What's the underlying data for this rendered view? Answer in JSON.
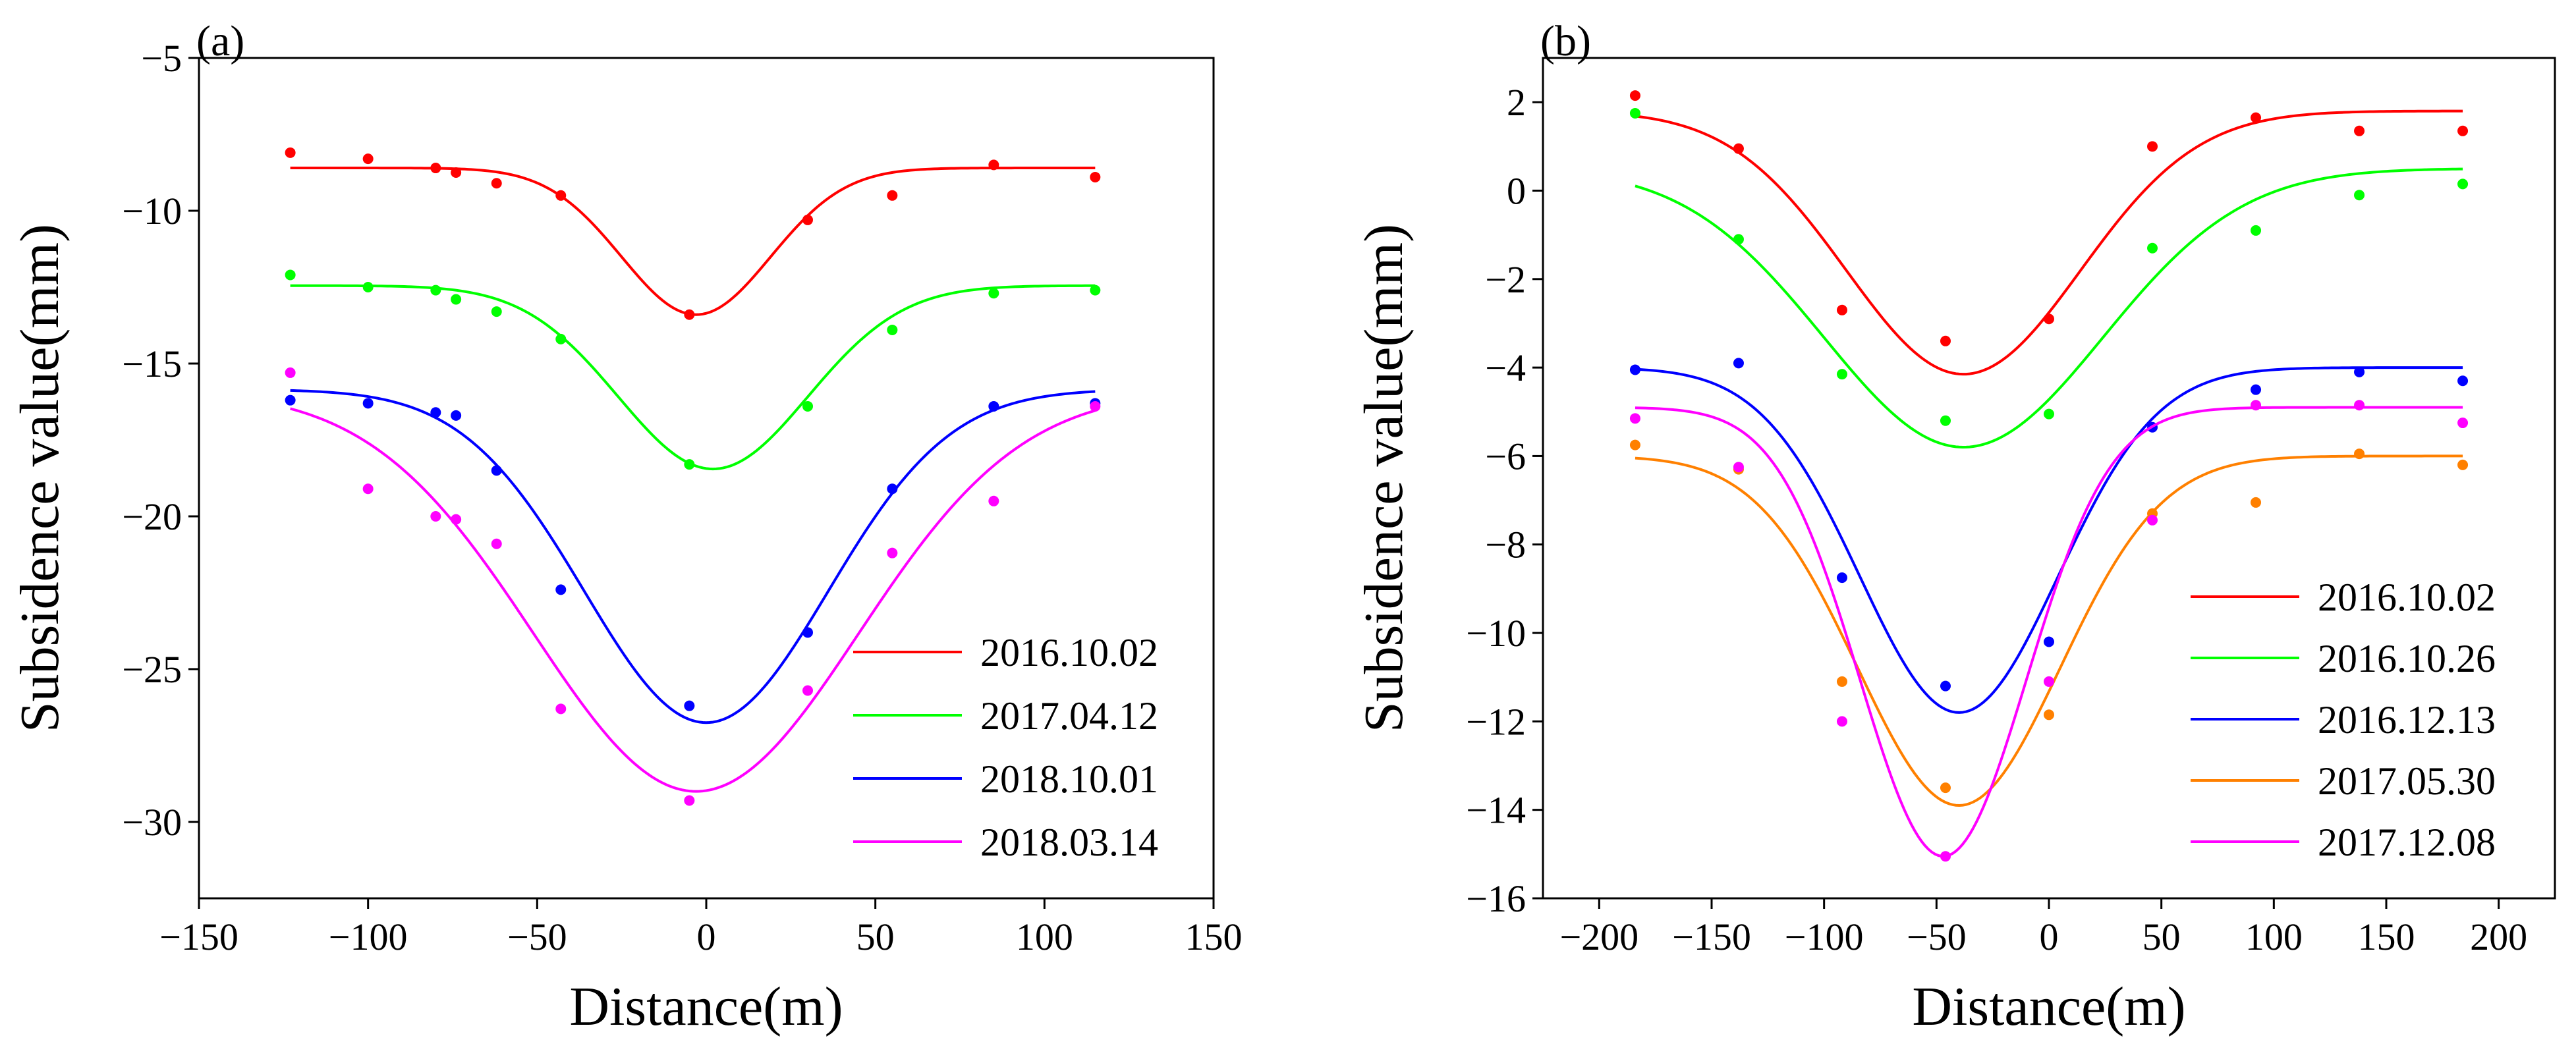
{
  "chart_data": [
    {
      "panel": "(a)",
      "type": "scatter",
      "xlabel": "Distance(m)",
      "ylabel": "Subsidence value(mm)",
      "xlim": [
        -150,
        150
      ],
      "ylim": [
        -32.5,
        -5
      ],
      "xticks": [
        -150,
        -100,
        -50,
        0,
        50,
        100,
        150
      ],
      "yticks": [
        -5,
        -10,
        -15,
        -20,
        -25,
        -30
      ],
      "legend_position": "bottom-right",
      "series": [
        {
          "name": "2016.10.02",
          "color": "#ff0000",
          "points": [
            [
              -123,
              -8.1
            ],
            [
              -100,
              -8.3
            ],
            [
              -80,
              -8.6
            ],
            [
              -74,
              -8.75
            ],
            [
              -62,
              -9.1
            ],
            [
              -43,
              -9.5
            ],
            [
              -5,
              -13.4
            ],
            [
              30,
              -10.3
            ],
            [
              55,
              -9.5
            ],
            [
              85,
              -8.5
            ],
            [
              115,
              -8.9
            ]
          ],
          "fit": {
            "y0": -8.6,
            "amp": 4.8,
            "xc": -3,
            "w": 22,
            "xmin": -123,
            "xmax": 115
          }
        },
        {
          "name": "2017.04.12",
          "color": "#00ff00",
          "points": [
            [
              -123,
              -12.1
            ],
            [
              -100,
              -12.5
            ],
            [
              -80,
              -12.6
            ],
            [
              -74,
              -12.9
            ],
            [
              -62,
              -13.3
            ],
            [
              -43,
              -14.2
            ],
            [
              -5,
              -18.3
            ],
            [
              30,
              -16.4
            ],
            [
              55,
              -13.9
            ],
            [
              85,
              -12.7
            ],
            [
              115,
              -12.6
            ]
          ],
          "fit": {
            "y0": -12.45,
            "amp": 6.0,
            "xc": 2,
            "w": 28,
            "xmin": -123,
            "xmax": 115
          }
        },
        {
          "name": "2018.10.01",
          "color": "#0000ff",
          "points": [
            [
              -123,
              -16.2
            ],
            [
              -100,
              -16.3
            ],
            [
              -80,
              -16.6
            ],
            [
              -74,
              -16.7
            ],
            [
              -62,
              -18.5
            ],
            [
              -43,
              -22.4
            ],
            [
              -5,
              -26.2
            ],
            [
              30,
              -23.8
            ],
            [
              55,
              -19.1
            ],
            [
              85,
              -16.4
            ],
            [
              115,
              -16.3
            ]
          ],
          "fit": {
            "y0": -15.85,
            "amp": 10.9,
            "xc": 0,
            "w": 36,
            "xmin": -123,
            "xmax": 115
          }
        },
        {
          "name": "2018.03.14",
          "color": "#ff00ff",
          "points": [
            [
              -123,
              -15.3
            ],
            [
              -100,
              -19.1
            ],
            [
              -80,
              -20.0
            ],
            [
              -74,
              -20.1
            ],
            [
              -62,
              -20.9
            ],
            [
              -43,
              -26.3
            ],
            [
              -5,
              -29.3
            ],
            [
              30,
              -25.7
            ],
            [
              55,
              -21.2
            ],
            [
              85,
              -19.5
            ],
            [
              115,
              -16.4
            ]
          ],
          "fit": {
            "y0": -15.9,
            "amp": 13.1,
            "xc": -3,
            "w": 48,
            "xmin": -123,
            "xmax": 115
          }
        }
      ]
    },
    {
      "panel": "(b)",
      "type": "scatter",
      "xlabel": "Distance(m)",
      "ylabel": "Subsidence value(mm)",
      "xlim": [
        -225,
        225
      ],
      "ylim": [
        -16,
        3
      ],
      "xticks": [
        -200,
        -150,
        -100,
        -50,
        0,
        50,
        100,
        150,
        200
      ],
      "yticks": [
        2,
        0,
        -2,
        -4,
        -6,
        -8,
        -10,
        -12,
        -14,
        -16
      ],
      "legend_position": "bottom-right",
      "series": [
        {
          "name": "2016.10.02",
          "color": "#ff0000",
          "points": [
            [
              -184,
              2.15
            ],
            [
              -138,
              0.95
            ],
            [
              -92,
              -2.7
            ],
            [
              -46,
              -3.4
            ],
            [
              0,
              -2.9
            ],
            [
              46,
              1.0
            ],
            [
              92,
              1.65
            ],
            [
              138,
              1.35
            ],
            [
              184,
              1.35
            ]
          ],
          "fit": {
            "y0": 1.8,
            "amp": 5.95,
            "xc": -38,
            "w": 52,
            "xmin": -184,
            "xmax": 184
          }
        },
        {
          "name": "2016.10.26",
          "color": "#00ff00",
          "points": [
            [
              -184,
              1.75
            ],
            [
              -138,
              -1.1
            ],
            [
              -92,
              -4.15
            ],
            [
              -46,
              -5.2
            ],
            [
              0,
              -5.05
            ],
            [
              46,
              -1.3
            ],
            [
              92,
              -0.9
            ],
            [
              138,
              -0.1
            ],
            [
              184,
              0.15
            ]
          ],
          "fit": {
            "y0": 0.5,
            "amp": 6.3,
            "xc": -38,
            "w": 62,
            "xmin": -184,
            "xmax": 184
          }
        },
        {
          "name": "2016.12.13",
          "color": "#0000ff",
          "points": [
            [
              -184,
              -4.05
            ],
            [
              -138,
              -3.9
            ],
            [
              -92,
              -8.75
            ],
            [
              -46,
              -11.2
            ],
            [
              0,
              -10.2
            ],
            [
              46,
              -5.35
            ],
            [
              92,
              -4.5
            ],
            [
              138,
              -4.1
            ],
            [
              184,
              -4.3
            ]
          ],
          "fit": {
            "y0": -4.0,
            "amp": 7.8,
            "xc": -40,
            "w": 44,
            "xmin": -184,
            "xmax": 184
          }
        },
        {
          "name": "2017.05.30",
          "color": "#ff8000",
          "points": [
            [
              -184,
              -5.75
            ],
            [
              -138,
              -6.3
            ],
            [
              -92,
              -11.1
            ],
            [
              -46,
              -13.5
            ],
            [
              0,
              -11.85
            ],
            [
              46,
              -7.3
            ],
            [
              92,
              -7.05
            ],
            [
              138,
              -5.95
            ],
            [
              184,
              -6.2
            ]
          ],
          "fit": {
            "y0": -6.0,
            "amp": 7.9,
            "xc": -40,
            "w": 45,
            "xmin": -184,
            "xmax": 184
          }
        },
        {
          "name": "2017.12.08",
          "color": "#ff00ff",
          "points": [
            [
              -184,
              -5.15
            ],
            [
              -138,
              -6.25
            ],
            [
              -92,
              -12.0
            ],
            [
              -46,
              -15.05
            ],
            [
              0,
              -11.1
            ],
            [
              46,
              -7.45
            ],
            [
              92,
              -4.85
            ],
            [
              138,
              -4.85
            ],
            [
              184,
              -5.25
            ]
          ],
          "fit": {
            "y0": -4.9,
            "amp": 10.15,
            "xc": -47,
            "w": 37,
            "xmin": -184,
            "xmax": 184
          }
        }
      ]
    }
  ]
}
